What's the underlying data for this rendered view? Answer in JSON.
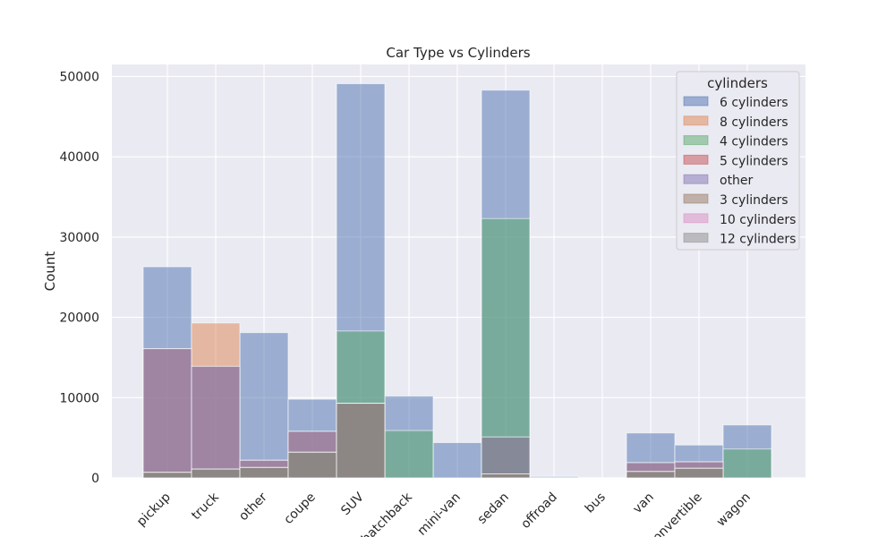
{
  "chart_data": {
    "type": "bar",
    "title": "Car Type vs Cylinders",
    "xlabel": "",
    "ylabel": "Count",
    "ylim": [
      0,
      51500
    ],
    "yticks": [
      0,
      10000,
      20000,
      30000,
      40000,
      50000
    ],
    "categories": [
      "pickup",
      "truck",
      "other",
      "coupe",
      "SUV",
      "hatchback",
      "mini-van",
      "sedan",
      "offroad",
      "bus",
      "van",
      "convertible",
      "wagon"
    ],
    "grid": true,
    "legend": {
      "title": "cylinders",
      "placement": "top-right"
    },
    "series": [
      {
        "name": "6 cylinders",
        "color": "#4c72b0",
        "values": [
          26300,
          13900,
          18100,
          9800,
          49100,
          10200,
          4400,
          48300,
          200,
          0,
          5600,
          4100,
          6600
        ]
      },
      {
        "name": "8 cylinders",
        "color": "#dd8452",
        "values": [
          16100,
          19300,
          2200,
          5800,
          9300,
          0,
          0,
          5100,
          100,
          0,
          1900,
          2000,
          0
        ]
      },
      {
        "name": "4 cylinders",
        "color": "#55a868",
        "values": [
          700,
          1100,
          1300,
          3200,
          18300,
          5900,
          0,
          32300,
          0,
          0,
          800,
          1200,
          3600
        ]
      },
      {
        "name": "5 cylinders",
        "color": "#c44e52",
        "values": [
          0,
          0,
          0,
          0,
          0,
          0,
          0,
          0,
          0,
          0,
          0,
          0,
          0
        ]
      },
      {
        "name": "other",
        "color": "#8172b3",
        "values": [
          16100,
          13900,
          2200,
          5800,
          9300,
          0,
          0,
          5100,
          0,
          0,
          1900,
          2000,
          0
        ]
      },
      {
        "name": "3 cylinders",
        "color": "#937860",
        "values": [
          700,
          1100,
          1300,
          3200,
          9300,
          0,
          0,
          500,
          0,
          0,
          800,
          1200,
          0
        ]
      },
      {
        "name": "10 cylinders",
        "color": "#da8bc3",
        "values": [
          0,
          0,
          0,
          0,
          0,
          0,
          0,
          0,
          0,
          0,
          0,
          0,
          0
        ]
      },
      {
        "name": "12 cylinders",
        "color": "#8c8c8c",
        "values": [
          700,
          1100,
          1300,
          3200,
          9300,
          0,
          0,
          500,
          0,
          0,
          800,
          1200,
          0
        ]
      }
    ]
  }
}
